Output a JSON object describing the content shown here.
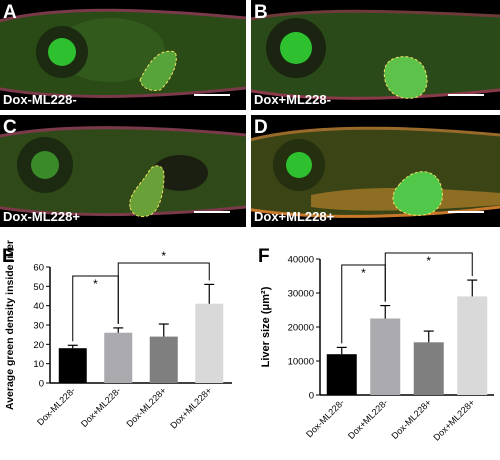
{
  "panels": [
    {
      "label": "A",
      "condition": "Dox-ML228-"
    },
    {
      "label": "B",
      "condition": "Dox+ML228-"
    },
    {
      "label": "C",
      "condition": "Dox-ML228+"
    },
    {
      "label": "D",
      "condition": "Dox+ML228+"
    }
  ],
  "colors": {
    "bar_colors": [
      "#000000",
      "#a9a9ae",
      "#7f7f7f",
      "#d9d9d9"
    ],
    "fluorescence_green": "#35c235",
    "outline": "#f0e060"
  },
  "chart_data": [
    {
      "panel_label": "E",
      "type": "bar",
      "categories": [
        "Dox-ML228-",
        "Dox+ML228-",
        "Dox-ML228+",
        "Dox+ML228+"
      ],
      "values": [
        18,
        26,
        24,
        41
      ],
      "errors": [
        1.5,
        2.5,
        6.5,
        10
      ],
      "ylabel": "Average green density inside liver",
      "xlabel": "",
      "ylim": [
        0,
        60
      ],
      "yticks": [
        "0",
        "10",
        "20",
        "30",
        "40",
        "50",
        "60"
      ],
      "significance": [
        {
          "from": 0,
          "to": 1,
          "label": "*"
        },
        {
          "from": 1,
          "to": 3,
          "label": "*"
        }
      ]
    },
    {
      "panel_label": "F",
      "type": "bar",
      "categories": [
        "Dox-ML228-",
        "Dox+ML228-",
        "Dox-ML228+",
        "Dox+ML228+"
      ],
      "values": [
        12000,
        22500,
        15500,
        29000
      ],
      "errors": [
        2000,
        3800,
        3300,
        4800
      ],
      "ylabel": "Liver size (μm²)",
      "xlabel": "",
      "ylim": [
        0,
        40000
      ],
      "yticks": [
        "0",
        "10000",
        "20000",
        "30000",
        "40000"
      ],
      "significance": [
        {
          "from": 0,
          "to": 1,
          "label": "*"
        },
        {
          "from": 1,
          "to": 3,
          "label": "*"
        }
      ]
    }
  ]
}
